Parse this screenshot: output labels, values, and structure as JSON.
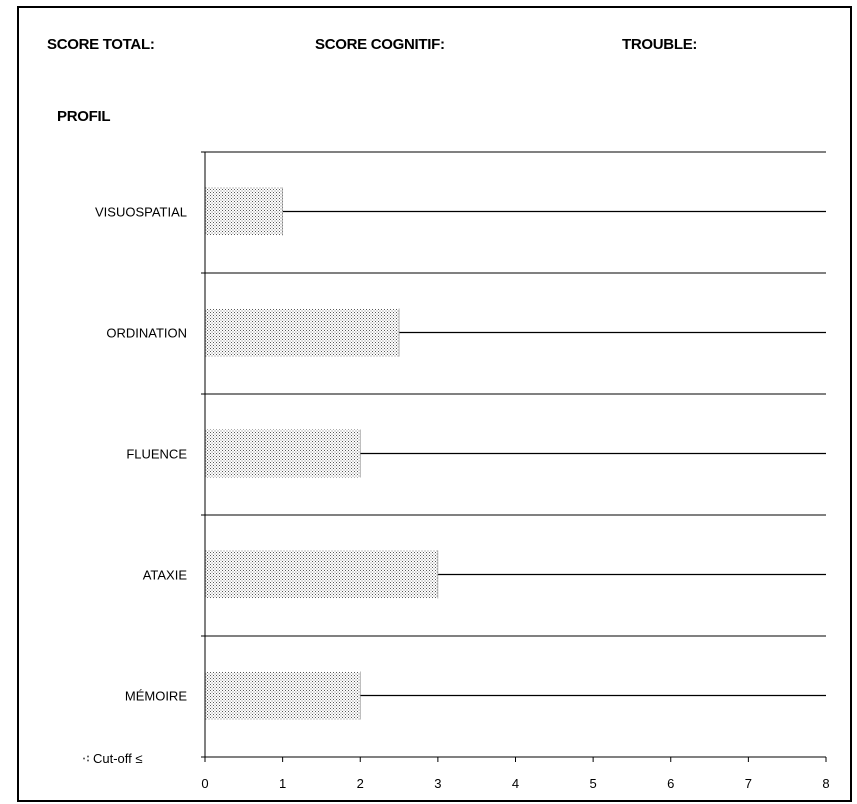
{
  "header": {
    "score_total_label": "SCORE TOTAL:",
    "score_cognitif_label": "SCORE COGNITIF:",
    "trouble_label": "TROUBLE:",
    "profil_label": "PROFIL"
  },
  "chart_data": {
    "type": "bar",
    "orientation": "horizontal",
    "categories": [
      "VISUOSPATIAL",
      "ORDINATION",
      "FLUENCE",
      "ATAXIE",
      "MÉMOIRE"
    ],
    "series": [
      {
        "values": [
          1,
          2.5,
          2,
          3,
          2
        ]
      }
    ],
    "xlim": [
      0,
      8
    ],
    "xticks": [
      0,
      1,
      2,
      3,
      4,
      5,
      6,
      7,
      8
    ],
    "cutoff_legend": "Cut-off ≤",
    "bar_fill": "dotted-gray",
    "grid": "category separators",
    "colors": {
      "line": "#000000",
      "dots": "#5a5a5a"
    }
  }
}
